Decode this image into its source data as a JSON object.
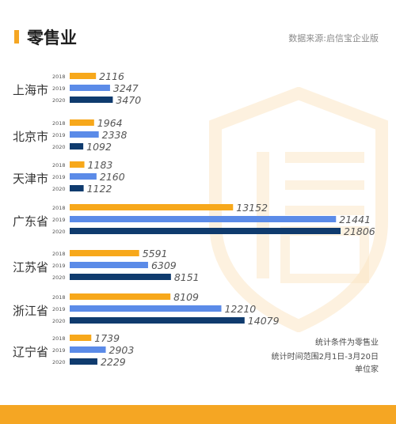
{
  "header": {
    "title": "零售业",
    "source": "数据来源:启信宝企业版"
  },
  "notes": [
    "统计条件为零售业",
    "统计时间范围2月1日-3月20日",
    "单位家"
  ],
  "colors": {
    "accent": "#f5a623",
    "y2018": "#f7a81b",
    "y2019": "#5b8be8",
    "y2020": "#0f3b6e",
    "footer": "#f5a623"
  },
  "chart_data": {
    "type": "bar",
    "orientation": "horizontal",
    "categories": [
      "上海市",
      "北京市",
      "天津市",
      "广东省",
      "江苏省",
      "浙江省",
      "辽宁省"
    ],
    "series": [
      {
        "name": "2018",
        "values": [
          2116,
          1964,
          1183,
          13152,
          5591,
          8109,
          1739
        ]
      },
      {
        "name": "2019",
        "values": [
          3247,
          2338,
          2160,
          21441,
          6309,
          12210,
          2903
        ]
      },
      {
        "name": "2020",
        "values": [
          3470,
          1092,
          1122,
          21806,
          8151,
          14079,
          2229
        ]
      }
    ]
  }
}
